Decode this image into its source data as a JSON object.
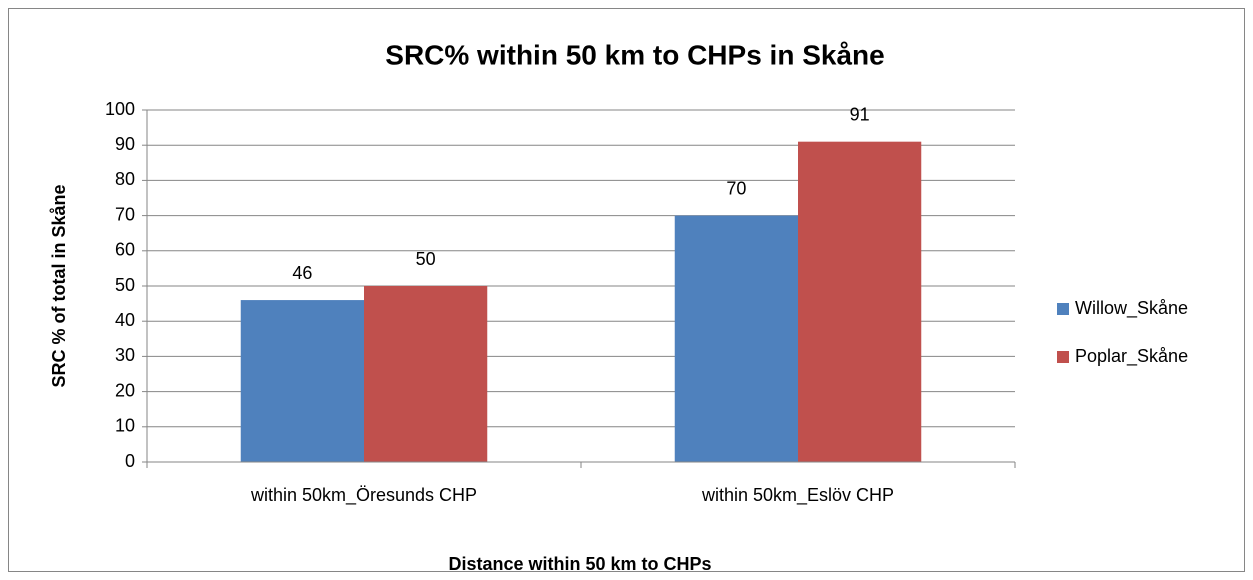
{
  "chart_data": {
    "type": "bar",
    "title": "SRC% within 50 km to CHPs in Skåne",
    "x_label": "Distance within 50 km to CHPs",
    "y_label": "SRC % of total in Skåne",
    "categories": [
      "within 50km_Öresunds CHP",
      "within 50km_Eslöv CHP"
    ],
    "series": [
      {
        "name": "Willow_Skåne",
        "color": "#4f81bd",
        "values": [
          46,
          70
        ]
      },
      {
        "name": "Poplar_Skåne",
        "color": "#c0504d",
        "values": [
          50,
          91
        ]
      }
    ],
    "ylim": [
      0,
      100
    ],
    "yticks": [
      0,
      10,
      20,
      30,
      40,
      50,
      60,
      70,
      80,
      90,
      100
    ],
    "grid": true,
    "legend": "right",
    "data_labels": true
  }
}
